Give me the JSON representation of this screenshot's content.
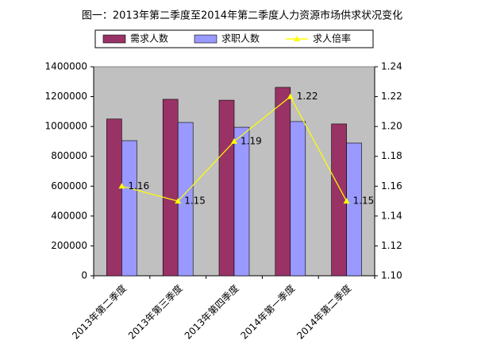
{
  "chart_data": {
    "type": "bar-line",
    "title": "图一：2013年第二季度至2014年第二季度人力资源市场供求状况变化",
    "categories": [
      "2013年第二季度",
      "2013年第三季度",
      "2013年第四季度",
      "2014年第一季度",
      "2014年第二季度"
    ],
    "series": [
      {
        "name": "需求人数",
        "type": "bar",
        "color": "#993366",
        "values": [
          1050000,
          1182000,
          1176000,
          1262000,
          1017000
        ]
      },
      {
        "name": "求职人数",
        "type": "bar",
        "color": "#9999ff",
        "values": [
          905000,
          1027000,
          995000,
          1033000,
          889000
        ]
      },
      {
        "name": "求人倍率",
        "type": "line",
        "axis": "y2",
        "color": "#ffff00",
        "values": [
          1.16,
          1.15,
          1.19,
          1.22,
          1.15
        ]
      }
    ],
    "ylim": [
      0,
      1400000
    ],
    "yticks": [
      0,
      200000,
      400000,
      600000,
      800000,
      1000000,
      1200000,
      1400000
    ],
    "y2lim": [
      1.1,
      1.24
    ],
    "y2ticks": [
      {
        "value": 1.1,
        "label": "1.10"
      },
      {
        "value": 1.12,
        "label": "1.12"
      },
      {
        "value": 1.14,
        "label": "1.14"
      },
      {
        "value": 1.16,
        "label": "1.16"
      },
      {
        "value": 1.18,
        "label": "1.18"
      },
      {
        "value": 1.2,
        "label": "1.20"
      },
      {
        "value": 1.22,
        "label": "1.22"
      },
      {
        "value": 1.24,
        "label": "1.24"
      }
    ],
    "plot_background": "#c0c0c0",
    "grid": false
  }
}
